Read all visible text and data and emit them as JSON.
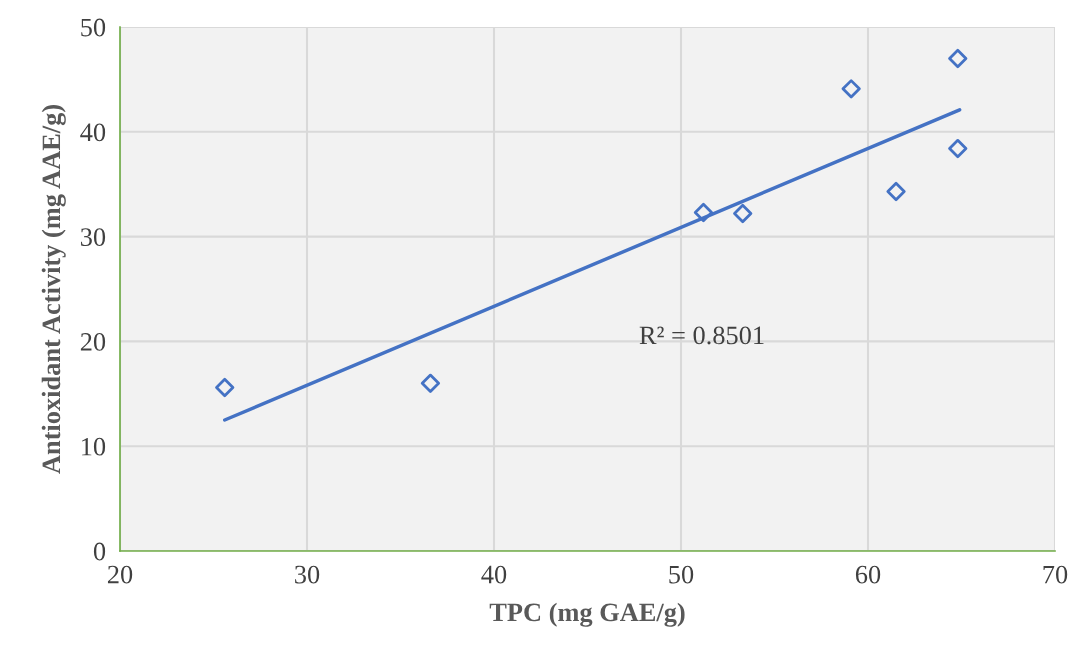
{
  "chart_data": {
    "type": "scatter",
    "xlabel": "TPC (mg GAE/g)",
    "ylabel": "Antioxidant Activity (mg AAE/g)",
    "x": [
      25.6,
      36.6,
      51.2,
      53.3,
      59.1,
      61.5,
      64.8,
      64.8
    ],
    "series": [
      {
        "color": "#4472c4",
        "marker": "diamond",
        "values": [
          15.6,
          16.0,
          32.3,
          32.2,
          44.1,
          34.3,
          47.0,
          38.4
        ]
      },
      {
        "type": "line",
        "color": "#4472c4",
        "x": [
          25.6,
          64.9
        ],
        "values": [
          12.5,
          42.1
        ],
        "line_style": "solid"
      }
    ],
    "annotations": [
      "R² = 0.8501"
    ],
    "xlim": [
      20,
      70
    ],
    "xticks": [
      20,
      30,
      40,
      50,
      60,
      70
    ],
    "ylim": [
      0,
      50
    ],
    "yticks": [
      0,
      10,
      20,
      30,
      40,
      50
    ],
    "grid": true,
    "legend": false
  }
}
